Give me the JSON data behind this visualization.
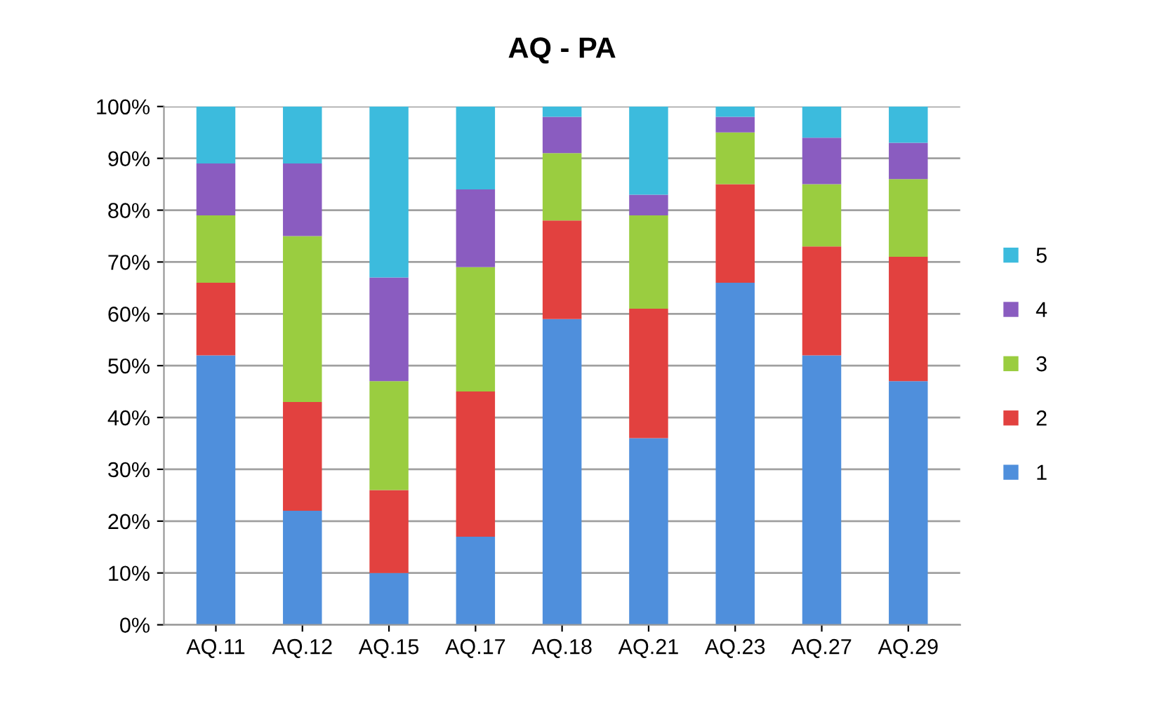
{
  "chart_data": {
    "type": "bar",
    "title": "AQ - PA",
    "stacked": true,
    "grid": "y",
    "legend": "right",
    "categories": [
      "AQ.11",
      "AQ.12",
      "AQ.15",
      "AQ.17",
      "AQ.18",
      "AQ.21",
      "AQ.23",
      "AQ.27",
      "AQ.29"
    ],
    "ylim": [
      0,
      100
    ],
    "yticks": [
      {
        "value": 0,
        "label": "0%"
      },
      {
        "value": 10,
        "label": "10%"
      },
      {
        "value": 20,
        "label": "20%"
      },
      {
        "value": 30,
        "label": "30%"
      },
      {
        "value": 40,
        "label": "40%"
      },
      {
        "value": 50,
        "label": "50%"
      },
      {
        "value": 60,
        "label": "60%"
      },
      {
        "value": 70,
        "label": "70%"
      },
      {
        "value": 80,
        "label": "80%"
      },
      {
        "value": 90,
        "label": "90%"
      },
      {
        "value": 100,
        "label": "100%"
      }
    ],
    "series": [
      {
        "name": "1",
        "color": "#4f8fdc",
        "values": [
          52,
          22,
          10,
          17,
          59,
          36,
          66,
          52,
          47
        ]
      },
      {
        "name": "2",
        "color": "#e2413f",
        "values": [
          14,
          21,
          16,
          28,
          19,
          25,
          19,
          21,
          24
        ]
      },
      {
        "name": "3",
        "color": "#9acd40",
        "values": [
          13,
          32,
          21,
          24,
          13,
          18,
          10,
          12,
          15
        ]
      },
      {
        "name": "4",
        "color": "#8a5cc0",
        "values": [
          10,
          14,
          20,
          15,
          7,
          4,
          3,
          9,
          7
        ]
      },
      {
        "name": "5",
        "color": "#3cbbdd",
        "values": [
          11,
          11,
          33,
          16,
          2,
          17,
          2,
          6,
          7
        ]
      }
    ]
  }
}
